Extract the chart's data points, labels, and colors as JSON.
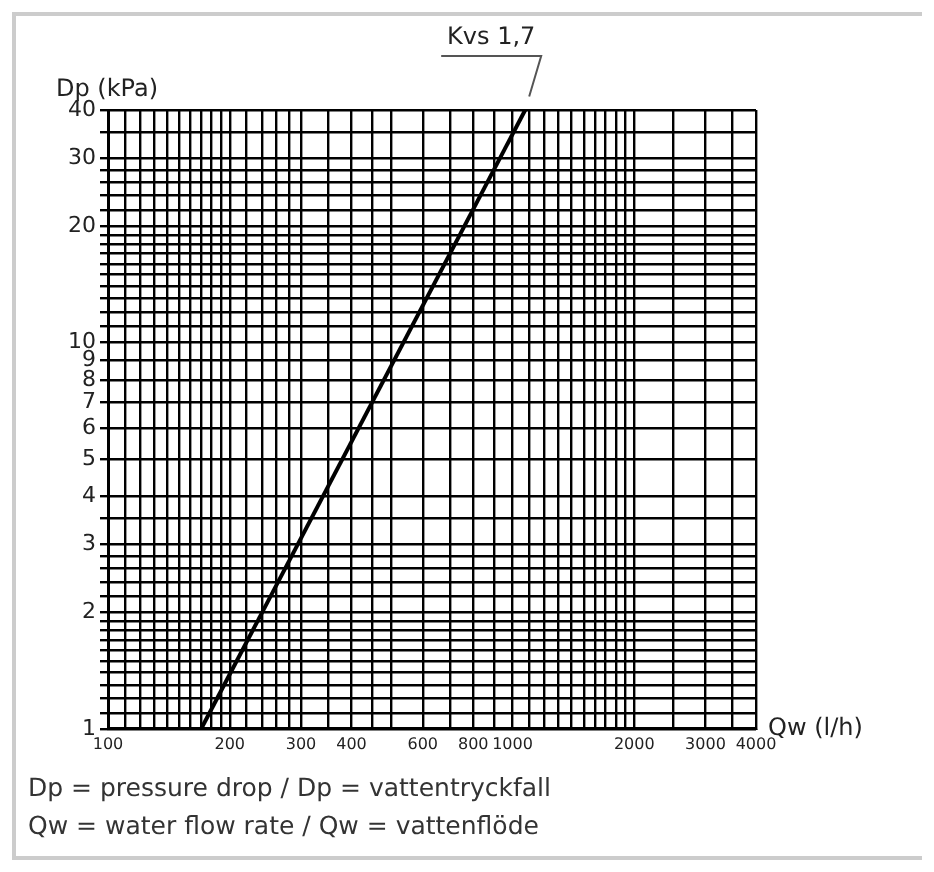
{
  "chart_data": {
    "type": "line",
    "xlabel": "Qw (l/h)",
    "ylabel": "Dp (kPa)",
    "log": "xy",
    "grid": true,
    "marker": "none",
    "line_style": "solid",
    "legend": false,
    "x": [
      170,
      1075
    ],
    "series": [
      {
        "color": "#000000",
        "values": [
          1,
          40
        ]
      }
    ],
    "xlim": [
      100,
      4000
    ],
    "ylim": [
      1,
      40
    ],
    "xticks": [
      100,
      {
        "value": 110,
        "label": null
      },
      {
        "value": 120,
        "label": null
      },
      {
        "value": 130,
        "label": null
      },
      {
        "value": 140,
        "label": null
      },
      {
        "value": 150,
        "label": null
      },
      {
        "value": 160,
        "label": null
      },
      {
        "value": 170,
        "label": null
      },
      {
        "value": 180,
        "label": null
      },
      {
        "value": 190,
        "label": null
      },
      200,
      {
        "value": 220,
        "label": null
      },
      {
        "value": 240,
        "label": null
      },
      {
        "value": 260,
        "label": null
      },
      {
        "value": 280,
        "label": null
      },
      300,
      {
        "value": 350,
        "label": null
      },
      400,
      {
        "value": 450,
        "label": null
      },
      {
        "value": 500,
        "label": null
      },
      600,
      {
        "value": 700,
        "label": null
      },
      800,
      {
        "value": 900,
        "label": null
      },
      1000,
      {
        "value": 1100,
        "label": null
      },
      {
        "value": 1200,
        "label": null
      },
      {
        "value": 1300,
        "label": null
      },
      {
        "value": 1400,
        "label": null
      },
      {
        "value": 1500,
        "label": null
      },
      {
        "value": 1600,
        "label": null
      },
      {
        "value": 1700,
        "label": null
      },
      {
        "value": 1800,
        "label": null
      },
      {
        "value": 1900,
        "label": null
      },
      2000,
      {
        "value": 2500,
        "label": null
      },
      3000,
      {
        "value": 3500,
        "label": null
      },
      4000
    ],
    "yticks": [
      1,
      {
        "value": 1.1,
        "label": null
      },
      {
        "value": 1.2,
        "label": null
      },
      {
        "value": 1.3,
        "label": null
      },
      {
        "value": 1.4,
        "label": null
      },
      {
        "value": 1.5,
        "label": null
      },
      {
        "value": 1.6,
        "label": null
      },
      {
        "value": 1.7,
        "label": null
      },
      {
        "value": 1.8,
        "label": null
      },
      {
        "value": 1.9,
        "label": null
      },
      2,
      {
        "value": 2.2,
        "label": null
      },
      {
        "value": 2.4,
        "label": null
      },
      {
        "value": 2.6,
        "label": null
      },
      {
        "value": 2.8,
        "label": null
      },
      3,
      {
        "value": 3.5,
        "label": null
      },
      4,
      5,
      6,
      7,
      8,
      9,
      10,
      {
        "value": 11,
        "label": null
      },
      {
        "value": 12,
        "label": null
      },
      {
        "value": 13,
        "label": null
      },
      {
        "value": 14,
        "label": null
      },
      {
        "value": 15,
        "label": null
      },
      {
        "value": 16,
        "label": null
      },
      {
        "value": 17,
        "label": null
      },
      {
        "value": 18,
        "label": null
      },
      {
        "value": 19,
        "label": null
      },
      20,
      {
        "value": 22,
        "label": null
      },
      {
        "value": 24,
        "label": null
      },
      {
        "value": 26,
        "label": null
      },
      {
        "value": 28,
        "label": null
      },
      30,
      {
        "value": 35,
        "label": null
      },
      40
    ],
    "annotations": [
      {
        "text": "Kvs 1,7",
        "x": 1075,
        "y": 40
      },
      "Dp = pressure drop / Dp = vattentryckfall",
      "Qw = water flow rate / Qw = vattenflöde"
    ]
  }
}
